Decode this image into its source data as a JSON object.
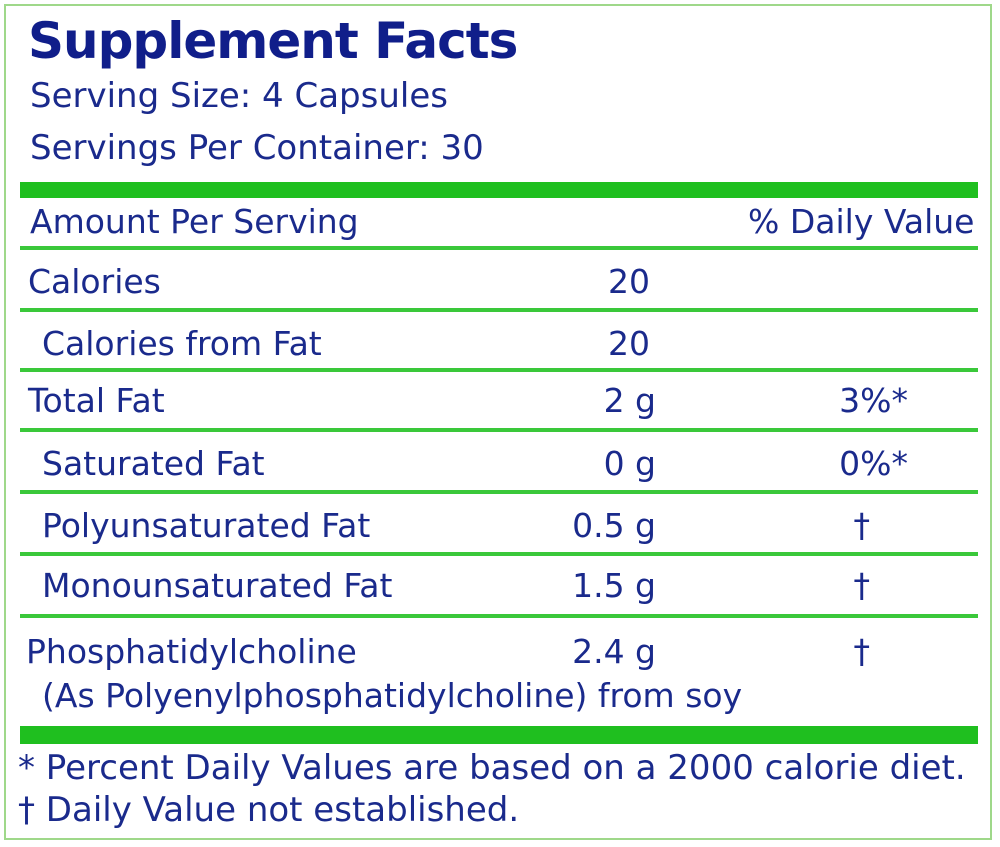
{
  "title": "Supplement Facts",
  "serving_size": "Serving Size: 4 Capsules",
  "servings_per_container": "Servings Per Container: 30",
  "header": {
    "amount_per_serving": "Amount Per Serving",
    "daily_value": "% Daily Value"
  },
  "rows": [
    {
      "name": "Calories",
      "amount": "20",
      "dv": ""
    },
    {
      "name": "Calories from Fat",
      "amount": "20",
      "dv": ""
    },
    {
      "name": "Total Fat",
      "amount": "2 g",
      "dv": "3%*"
    },
    {
      "name": "Saturated Fat",
      "amount": "0 g",
      "dv": "0%*"
    },
    {
      "name": "Polyunsaturated Fat",
      "amount": "0.5 g",
      "dv": "†"
    },
    {
      "name": "Monounsaturated Fat",
      "amount": "1.5 g",
      "dv": "†"
    },
    {
      "name": "Phosphatidylcholine",
      "sub": "(As Polyenylphosphatidylcholine) from soy",
      "amount": "2.4 g",
      "dv": "†"
    }
  ],
  "footnotes": [
    "* Percent Daily Values are based on a 2000 calorie diet.",
    "† Daily Value not established."
  ],
  "colors": {
    "text": "#1a2a8c",
    "rule_green": "#1fbf1f",
    "border_green": "#9fd88a"
  }
}
